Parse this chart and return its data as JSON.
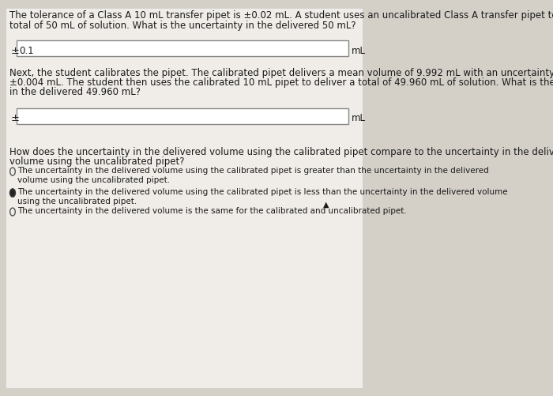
{
  "bg_color": "#d4d0c8",
  "panel_color": "#f0ede8",
  "text_color": "#1a1a1a",
  "input_box_color": "#ffffff",
  "input_box_border": "#888888",
  "title_text_1": "The tolerance of a Class A 10 mL transfer pipet is ±0.02 mL. A student uses an uncalibrated Class A transfer pipet to deliver a",
  "title_text_2": "total of 50 mL of solution. What is the uncertainty in the delivered 50 mL?",
  "answer1_value": "0.1",
  "ml_label": "mL",
  "next_text_1": "Next, the student calibrates the pipet. The calibrated pipet delivers a mean volume of 9.992 mL with an uncertainty of",
  "next_text_2": "±0.004 mL. The student then uses the calibrated 10 mL pipet to deliver a total of 49.960 mL of solution. What is the uncertainty",
  "next_text_3": "in the delivered 49.960 mL?",
  "how_text_1": "How does the uncertainty in the delivered volume using the calibrated pipet compare to the uncertainty in the delivered",
  "how_text_2": "volume using the uncalibrated pipet?",
  "option1_text_1": "The uncertainty in the delivered volume using the calibrated pipet is greater than the uncertainty in the delivered",
  "option1_text_2": "volume using the uncalibrated pipet.",
  "option2_text_1": "The uncertainty in the delivered volume using the calibrated pipet is less than the uncertainty in the delivered volume",
  "option2_text_2": "using the uncalibrated pipet.",
  "option3_text": "The uncertainty in the delivered volume is the same for the calibrated and uncalibrated pipet.",
  "option2_selected": true,
  "font_size_main": 8.5,
  "font_size_small": 7.5
}
